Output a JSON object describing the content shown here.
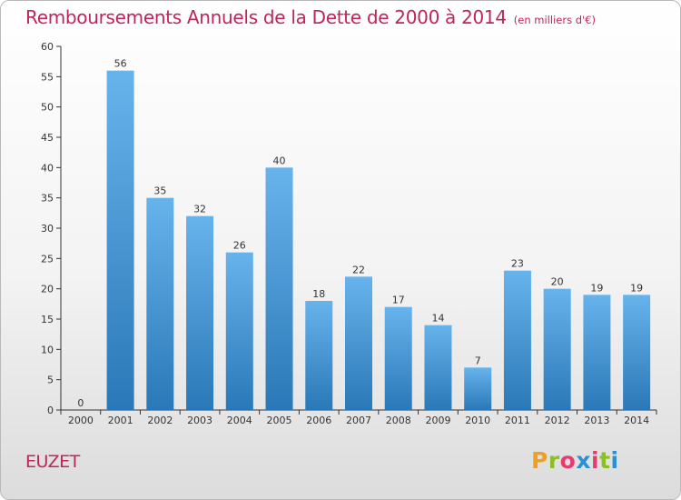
{
  "header": {
    "title": "Remboursements Annuels de la Dette de 2000 à 2014",
    "subtitle": "(en milliers d'€)"
  },
  "footer": {
    "place": "EUZET",
    "logo": "Proxiti"
  },
  "colors": {
    "title": "#c0245c",
    "bar_light": "#67b3ec",
    "bar_dark": "#2a78b7",
    "logo_letters": [
      "#f0a01e",
      "#8cbf26",
      "#e63b6f",
      "#2a8fd6",
      "#e63b6f",
      "#8cbf26",
      "#2a8fd6"
    ]
  },
  "chart_data": {
    "type": "bar",
    "categories": [
      "2000",
      "2001",
      "2002",
      "2003",
      "2004",
      "2005",
      "2006",
      "2007",
      "2008",
      "2009",
      "2010",
      "2011",
      "2012",
      "2013",
      "2014"
    ],
    "values": [
      0,
      56,
      35,
      32,
      26,
      40,
      18,
      22,
      17,
      14,
      7,
      23,
      20,
      19,
      19
    ],
    "ylim": [
      0,
      60
    ],
    "yticks": [
      0,
      5,
      10,
      15,
      20,
      25,
      30,
      35,
      40,
      45,
      50,
      55,
      60
    ],
    "grid": false,
    "data_labels": true
  }
}
